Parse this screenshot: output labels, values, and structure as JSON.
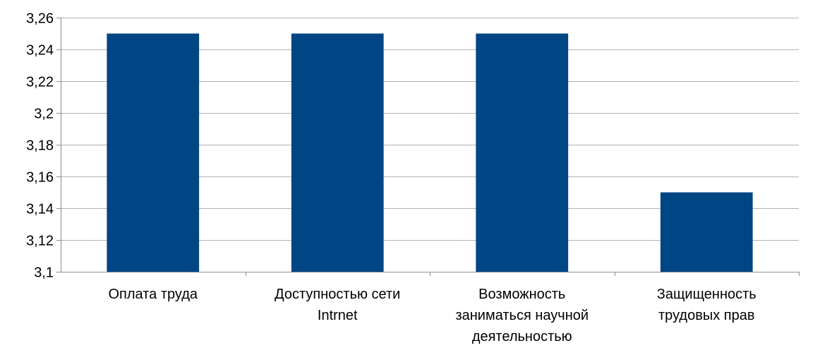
{
  "chart_data": {
    "type": "bar",
    "title": "",
    "xlabel": "",
    "ylabel": "",
    "categories": [
      "Оплата труда",
      "Доступностью сети Intrnet",
      "Возможность заниматься научной деятельностью",
      "Защищенность трудовых прав"
    ],
    "category_lines": [
      [
        "Оплата труда"
      ],
      [
        "Доступностью сети",
        "Intrnet"
      ],
      [
        "Возможность",
        "заниматься научной",
        "деятельностью"
      ],
      [
        "Защищенность",
        "трудовых прав"
      ]
    ],
    "values": [
      3.25,
      3.25,
      3.25,
      3.15
    ],
    "ylim": [
      3.1,
      3.26
    ],
    "yticks": [
      3.1,
      3.12,
      3.14,
      3.16,
      3.18,
      3.2,
      3.22,
      3.24,
      3.26
    ],
    "ytick_labels": [
      "3,1",
      "3,12",
      "3,14",
      "3,16",
      "3,18",
      "3,2",
      "3,22",
      "3,24",
      "3,26"
    ],
    "grid": true,
    "legend": "none",
    "bar_color": "#004684",
    "grid_color": "#b3b3b3",
    "axis_color": "#8c8c8c"
  }
}
